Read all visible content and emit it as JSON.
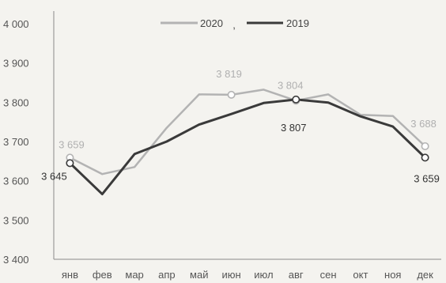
{
  "chart_data": {
    "type": "line",
    "categories": [
      "янв",
      "фев",
      "мар",
      "апр",
      "май",
      "июн",
      "июл",
      "авг",
      "сен",
      "окт",
      "ноя",
      "дек"
    ],
    "series": [
      {
        "name": "2020",
        "color": "#b3b3b3",
        "values": [
          3659,
          3617,
          3635,
          3735,
          3820,
          3819,
          3832,
          3804,
          3820,
          3768,
          3765,
          3688
        ]
      },
      {
        "name": "2019",
        "color": "#3a3a3a",
        "values": [
          3645,
          3566,
          3668,
          3700,
          3743,
          3770,
          3798,
          3807,
          3799,
          3764,
          3738,
          3659
        ]
      }
    ],
    "ylim": [
      3400,
      4000
    ],
    "yticks": [
      3400,
      3500,
      3600,
      3700,
      3800,
      3900,
      4000
    ],
    "ytick_labels": [
      "3 400",
      "3 500",
      "3 600",
      "3 700",
      "3 800",
      "3 900",
      "4 000"
    ],
    "data_labels": [
      {
        "series": 0,
        "index": 0,
        "text": "3 659"
      },
      {
        "series": 0,
        "index": 5,
        "text": "3 819"
      },
      {
        "series": 0,
        "index": 7,
        "text": "3 804"
      },
      {
        "series": 0,
        "index": 11,
        "text": "3 688"
      },
      {
        "series": 1,
        "index": 0,
        "text": "3 645"
      },
      {
        "series": 1,
        "index": 7,
        "text": "3 807"
      },
      {
        "series": 1,
        "index": 11,
        "text": "3 659"
      }
    ],
    "marked_points": [
      {
        "series": 0,
        "index": 0
      },
      {
        "series": 0,
        "index": 5
      },
      {
        "series": 0,
        "index": 7
      },
      {
        "series": 0,
        "index": 11
      },
      {
        "series": 1,
        "index": 0
      },
      {
        "series": 1,
        "index": 7
      },
      {
        "series": 1,
        "index": 11
      }
    ],
    "legend": {
      "position": "top-center",
      "separator": ","
    },
    "grid": false
  }
}
